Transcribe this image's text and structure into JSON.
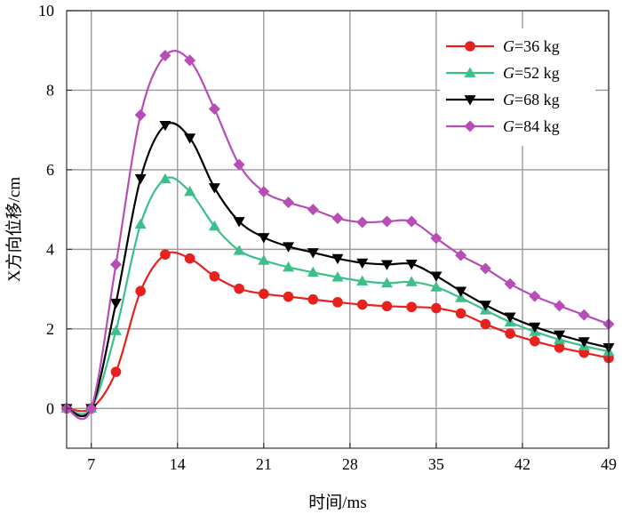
{
  "chart_data": {
    "type": "line",
    "xlabel": "时间/ms",
    "ylabel": "X方向位移/cm",
    "xlim": [
      5,
      49
    ],
    "ylim": [
      -1,
      10
    ],
    "xticks": [
      7,
      14,
      21,
      28,
      35,
      42,
      49
    ],
    "yticks": [
      0,
      2,
      4,
      6,
      8,
      10
    ],
    "grid": true,
    "legend_position": "top-right",
    "x": [
      5,
      7,
      9,
      11,
      13,
      15,
      17,
      19,
      21,
      23,
      25,
      27,
      29,
      31,
      33,
      35,
      37,
      39,
      41,
      43,
      45,
      47,
      49
    ],
    "series": [
      {
        "name": "G=36 kg",
        "label_italic": "G",
        "label_rest": "=36 kg",
        "color": "#e8201e",
        "marker": "circle",
        "values": [
          0,
          0,
          0.92,
          2.95,
          3.87,
          3.77,
          3.32,
          3.01,
          2.88,
          2.81,
          2.74,
          2.67,
          2.61,
          2.57,
          2.55,
          2.52,
          2.39,
          2.12,
          1.88,
          1.69,
          1.53,
          1.4,
          1.27
        ]
      },
      {
        "name": "G=52 kg",
        "label_italic": "G",
        "label_rest": "=52 kg",
        "color": "#3dbf8a",
        "marker": "triangle-up",
        "values": [
          0,
          0,
          1.95,
          4.63,
          5.77,
          5.45,
          4.58,
          3.97,
          3.72,
          3.55,
          3.42,
          3.3,
          3.2,
          3.15,
          3.18,
          3.05,
          2.78,
          2.47,
          2.17,
          1.93,
          1.73,
          1.57,
          1.43
        ]
      },
      {
        "name": "G=68 kg",
        "label_italic": "G",
        "label_rest": "=68 kg",
        "color": "#000000",
        "marker": "triangle-down",
        "values": [
          0,
          0,
          2.65,
          5.78,
          7.12,
          6.8,
          5.55,
          4.7,
          4.3,
          4.07,
          3.92,
          3.77,
          3.66,
          3.62,
          3.63,
          3.33,
          2.95,
          2.6,
          2.3,
          2.05,
          1.85,
          1.68,
          1.53
        ]
      },
      {
        "name": "G=84 kg",
        "label_italic": "G",
        "label_rest": "=84 kg",
        "color": "#b84db8",
        "marker": "diamond",
        "values": [
          0,
          0,
          3.62,
          7.38,
          8.87,
          8.75,
          7.53,
          6.13,
          5.45,
          5.18,
          5.0,
          4.78,
          4.68,
          4.7,
          4.7,
          4.28,
          3.85,
          3.52,
          3.13,
          2.82,
          2.58,
          2.35,
          2.12
        ]
      }
    ]
  }
}
